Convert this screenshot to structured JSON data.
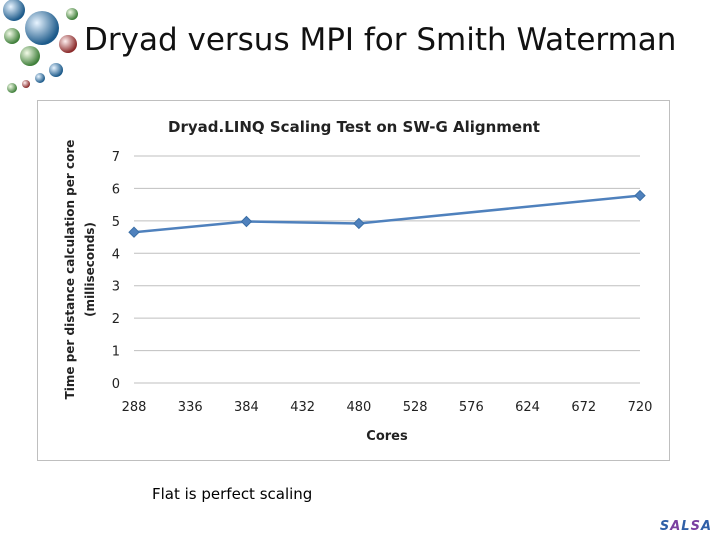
{
  "slide": {
    "title": "Dryad versus MPI for Smith Waterman",
    "caption": "Flat is perfect scaling",
    "brand": [
      "S",
      "A",
      "L",
      "S",
      "A"
    ]
  },
  "colors": {
    "series": "#4f81bd",
    "gridline": "#bfbfbf",
    "frame": "#bfbfbf"
  },
  "chart_data": {
    "type": "line",
    "title": "Dryad.LINQ Scaling Test on SW-G Alignment",
    "xlabel": "Cores",
    "ylabel_lines": [
      "Time per distance calculation per core",
      "(milliseconds)"
    ],
    "x_ticks": [
      288,
      336,
      384,
      432,
      480,
      528,
      576,
      624,
      672,
      720
    ],
    "y_ticks": [
      0,
      1,
      2,
      3,
      4,
      5,
      6,
      7
    ],
    "xlim": [
      288,
      720
    ],
    "ylim": [
      0,
      7
    ],
    "grid": true,
    "legend": "none",
    "series": [
      {
        "x": [
          288,
          384,
          480,
          720
        ],
        "y": [
          4.65,
          4.98,
          4.92,
          5.78
        ]
      }
    ]
  }
}
